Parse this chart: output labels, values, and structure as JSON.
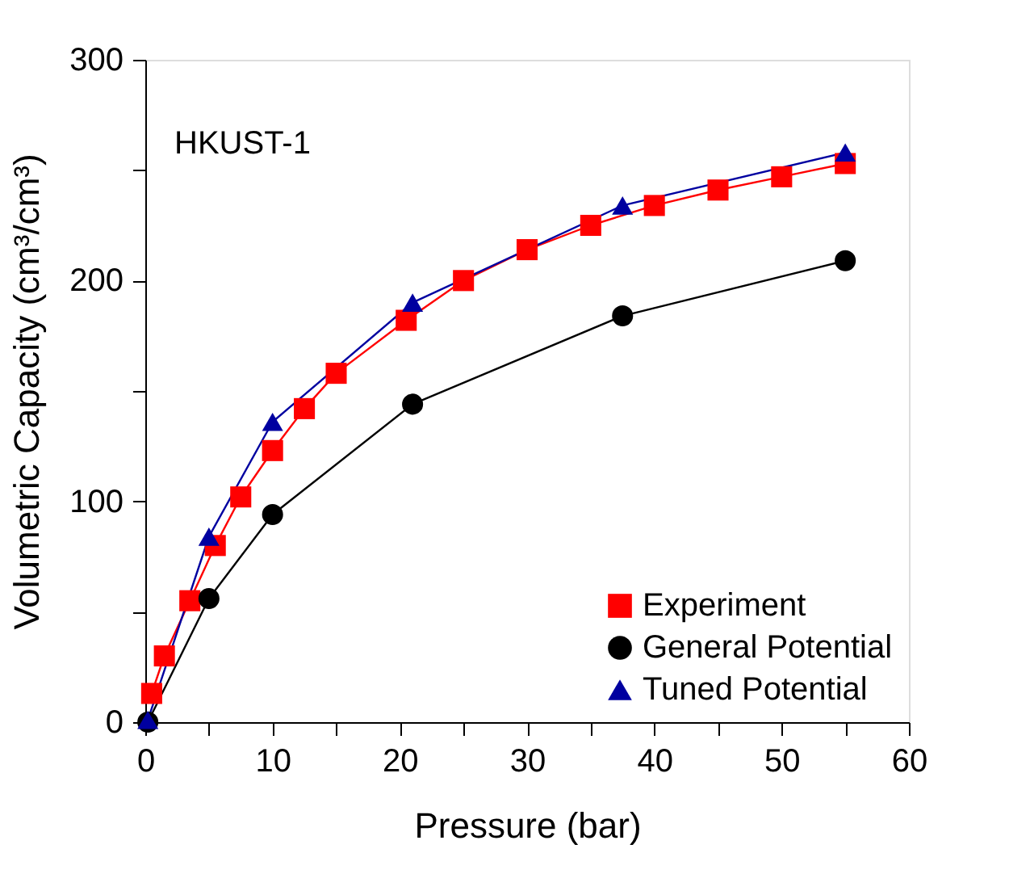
{
  "chart_data": {
    "type": "line",
    "xlabel": "Pressure (bar)",
    "ylabel": "Volumetric Capacity (cm³/cm³)",
    "annotations": [
      "HKUST-1"
    ],
    "xlim": [
      0,
      60
    ],
    "ylim": [
      0,
      300
    ],
    "xticks": [
      0,
      {
        "value": 5,
        "label": null
      },
      10,
      {
        "value": 15,
        "label": null
      },
      20,
      {
        "value": 25,
        "label": null
      },
      30,
      {
        "value": 35,
        "label": null
      },
      40,
      {
        "value": 45,
        "label": null
      },
      50,
      {
        "value": 55,
        "label": null
      },
      60
    ],
    "yticks": [
      0,
      {
        "value": 50,
        "label": null
      },
      100,
      {
        "value": 150,
        "label": null
      },
      200,
      {
        "value": 250,
        "label": null
      },
      300
    ],
    "grid": false,
    "legend": "bottom right",
    "series": [
      {
        "name": "Experiment",
        "color": "#ff0000",
        "marker": "square",
        "x": [
          0.5,
          1.5,
          3.5,
          5.5,
          7.5,
          10,
          12.5,
          15,
          20.5,
          25,
          30,
          35,
          40,
          45,
          50,
          55
        ],
        "values": [
          13,
          30,
          55,
          80,
          102,
          123,
          142,
          158,
          182,
          200,
          214,
          225,
          234,
          241,
          247,
          253
        ]
      },
      {
        "name": "General Potential",
        "color": "#000000",
        "marker": "circle",
        "x": [
          0.2,
          5,
          10,
          21,
          37.5,
          55
        ],
        "values": [
          0,
          56,
          94,
          144,
          184,
          209
        ]
      },
      {
        "name": "Tuned Potential",
        "color": "#0000a0",
        "marker": "triangle",
        "x": [
          0.2,
          5,
          10,
          21,
          37.5,
          55
        ],
        "values": [
          1,
          84,
          136,
          190,
          234,
          258
        ]
      }
    ]
  }
}
